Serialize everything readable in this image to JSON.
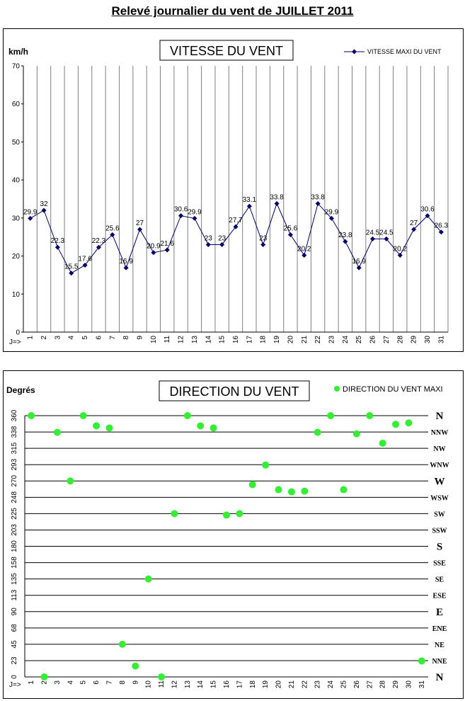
{
  "page_title": "Relevé journalier du vent de JUILLET 2011",
  "colors": {
    "speed_line": "#000066",
    "direction_marker": "#33ee33",
    "grid": "#808080"
  },
  "chart_data": [
    {
      "type": "line",
      "title": "VITESSE DU VENT",
      "ylabel": "km/h",
      "xlabel": "J=>",
      "ylim": [
        0,
        70
      ],
      "yticks": [
        "0",
        "10",
        "20",
        "30",
        "40",
        "50",
        "60",
        "70"
      ],
      "categories": [
        "1",
        "2",
        "3",
        "4",
        "5",
        "6",
        "7",
        "8",
        "9",
        "10",
        "11",
        "12",
        "13",
        "14",
        "15",
        "16",
        "17",
        "18",
        "19",
        "20",
        "21",
        "22",
        "23",
        "24",
        "25",
        "26",
        "27",
        "28",
        "29",
        "30",
        "31"
      ],
      "legend_position": "top-right",
      "series": [
        {
          "name": "VITESSE MAXI DU VENT",
          "values": [
            29.9,
            32,
            22.3,
            15.5,
            17.6,
            22.3,
            25.6,
            16.9,
            27,
            20.9,
            21.6,
            30.6,
            29.9,
            23,
            23,
            27.7,
            33.1,
            23,
            33.8,
            25.6,
            20.2,
            33.8,
            29.9,
            23.8,
            16.9,
            24.5,
            24.5,
            20.2,
            27,
            30.6,
            26.3
          ]
        }
      ]
    },
    {
      "type": "scatter",
      "title": "DIRECTION DU VENT",
      "ylabel": "Degrés",
      "xlabel": "J=>",
      "ylim": [
        0,
        360
      ],
      "yticks": [
        "0",
        "23",
        "45",
        "68",
        "90",
        "113",
        "135",
        "158",
        "180",
        "203",
        "225",
        "248",
        "270",
        "293",
        "315",
        "338",
        "360"
      ],
      "right_labels": [
        "N",
        "NNE",
        "NE",
        "ENE",
        "E",
        "ESE",
        "SE",
        "SSE",
        "S",
        "SSW",
        "SW",
        "WSW",
        "W",
        "WNW",
        "NW",
        "NNW",
        "N"
      ],
      "categories": [
        "1",
        "2",
        "3",
        "4",
        "5",
        "6",
        "7",
        "8",
        "9",
        "10",
        "11",
        "12",
        "13",
        "14",
        "15",
        "16",
        "17",
        "18",
        "19",
        "20",
        "21",
        "22",
        "23",
        "24",
        "25",
        "26",
        "27",
        "28",
        "29",
        "30",
        "31"
      ],
      "legend_position": "top-right",
      "series": [
        {
          "name": "DIRECTION DU VENT MAXI",
          "values": [
            360,
            0,
            337,
            270,
            360,
            346,
            343,
            45,
            15,
            135,
            0,
            225,
            360,
            346,
            343,
            223,
            225,
            265,
            292,
            258,
            255,
            256,
            337,
            360,
            258,
            335,
            360,
            322,
            348,
            350,
            22
          ]
        }
      ]
    }
  ]
}
